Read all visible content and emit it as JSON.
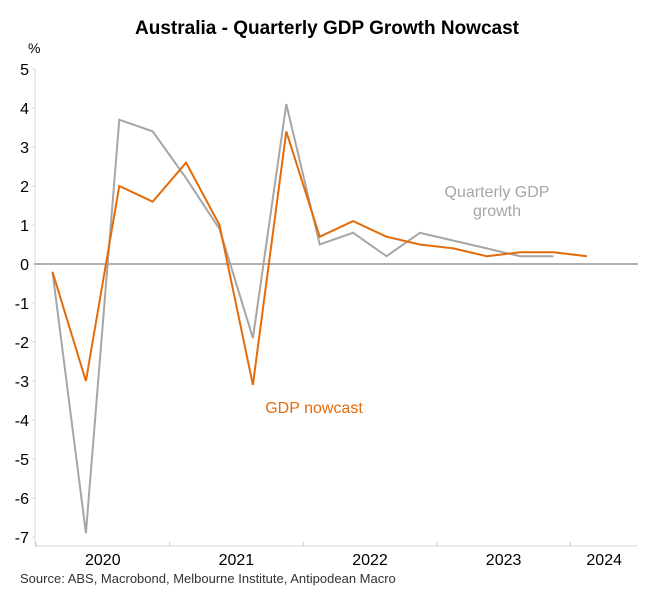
{
  "chart_data": {
    "type": "line",
    "title": "Australia - Quarterly GDP Growth Nowcast",
    "ylabel": "%",
    "xlabel": "",
    "ylim": [
      -7,
      5
    ],
    "yticks": [
      5,
      4,
      3,
      2,
      1,
      0,
      -1,
      -2,
      -3,
      -4,
      -5,
      -6,
      -7
    ],
    "x_categories": [
      "2020",
      "2021",
      "2022",
      "2023",
      "2024"
    ],
    "x": [
      "2020Q1",
      "2020Q2",
      "2020Q3",
      "2020Q4",
      "2021Q1",
      "2021Q2",
      "2021Q3",
      "2021Q4",
      "2022Q1",
      "2022Q2",
      "2022Q3",
      "2022Q4",
      "2023Q1",
      "2023Q2",
      "2023Q3",
      "2023Q4",
      "2024Q1"
    ],
    "grid": false,
    "legend": "inline annotations",
    "series": [
      {
        "name": "Quarterly GDP growth",
        "color": "#A6A6A6",
        "values": [
          -0.2,
          -6.9,
          3.7,
          3.4,
          2.2,
          0.9,
          -1.9,
          4.1,
          0.5,
          0.8,
          0.2,
          0.8,
          0.6,
          0.4,
          0.2,
          0.2,
          null
        ]
      },
      {
        "name": "GDP nowcast",
        "color": "#E36C0A",
        "values": [
          -0.2,
          -3.0,
          2.0,
          1.6,
          2.6,
          1.0,
          -3.1,
          3.4,
          0.7,
          1.1,
          0.7,
          0.5,
          0.4,
          0.2,
          0.3,
          0.3,
          0.2
        ]
      }
    ],
    "annotations": [
      {
        "series": "Quarterly GDP growth",
        "lines": [
          "Quarterly GDP",
          "growth"
        ],
        "color": "#A6A6A6"
      },
      {
        "series": "GDP nowcast",
        "lines": [
          "GDP nowcast"
        ],
        "color": "#E36C0A"
      }
    ],
    "source": "Source: ABS, Macrobond, Melbourne Institute, Antipodean Macro"
  }
}
